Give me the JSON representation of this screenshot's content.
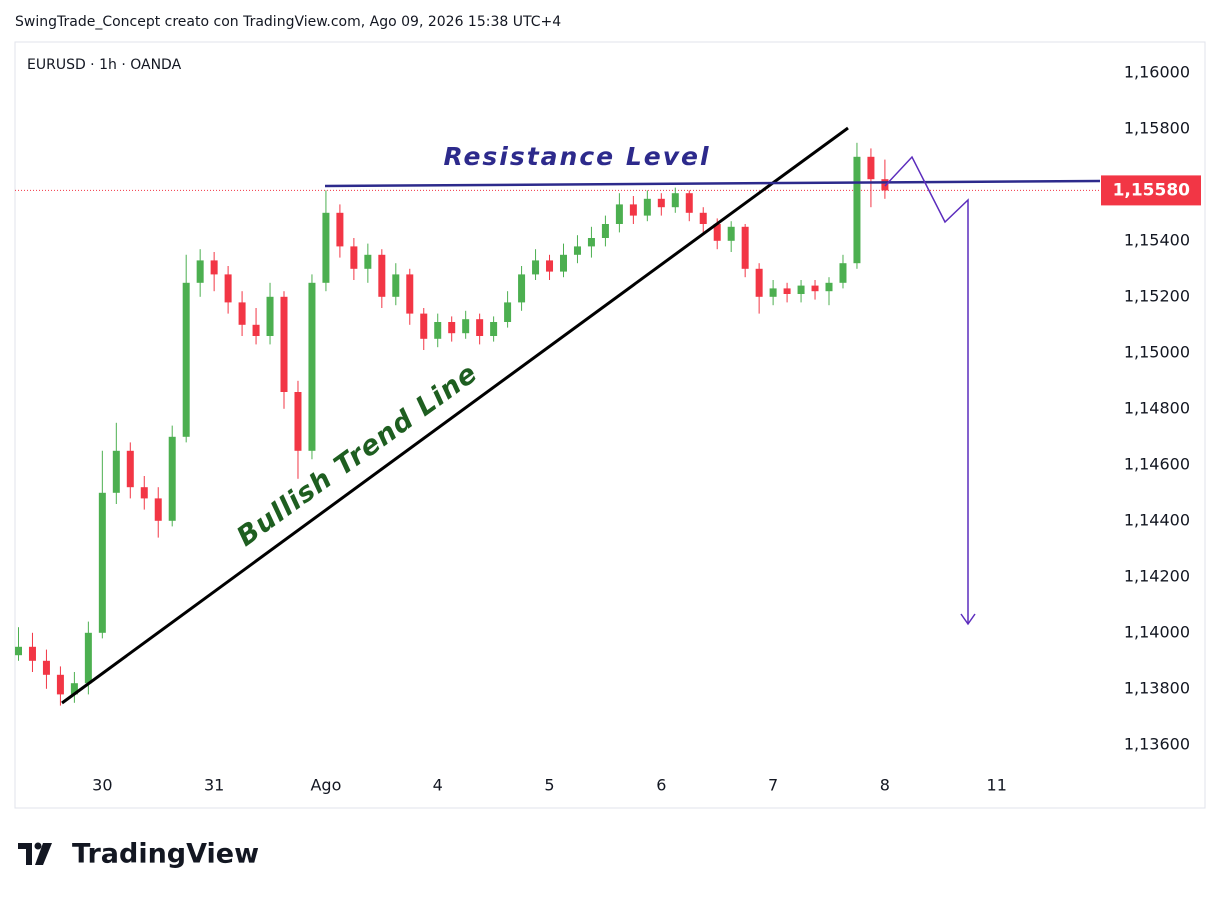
{
  "chart_data": {
    "type": "candlestick",
    "header": "SwingTrade_Concept creato con TradingView.com, Ago 09, 2026 15:38 UTC+4",
    "title": "EURUSD · 1h · OANDA",
    "annotations": [
      "Resistance Level",
      "Bullish Trend Line"
    ],
    "brand": "TradingView",
    "up_color": "#4caf50",
    "down_color": "#f23645",
    "open": [
      1.1392,
      1.1395,
      1.139,
      1.1385,
      1.1378,
      1.1382,
      1.14,
      1.145,
      1.1465,
      1.1452,
      1.1448,
      1.144,
      1.147,
      1.1525,
      1.1533,
      1.1528,
      1.1518,
      1.151,
      1.1506,
      1.152,
      1.1486,
      1.1465,
      1.1525,
      1.155,
      1.1538,
      1.153,
      1.1535,
      1.152,
      1.1528,
      1.1514,
      1.1505,
      1.1511,
      1.1507,
      1.1512,
      1.1506,
      1.1511,
      1.1518,
      1.1528,
      1.1533,
      1.1529,
      1.1535,
      1.1538,
      1.1541,
      1.1546,
      1.1553,
      1.1549,
      1.1555,
      1.1552,
      1.1557,
      1.155,
      1.1546,
      1.154,
      1.1545,
      1.153,
      1.152,
      1.1523,
      1.1521,
      1.1524,
      1.1522,
      1.1525,
      1.1532,
      1.157,
      1.1562
    ],
    "high": [
      1.1402,
      1.14,
      1.1394,
      1.1388,
      1.1386,
      1.1404,
      1.1465,
      1.1475,
      1.1468,
      1.1456,
      1.1452,
      1.1474,
      1.1535,
      1.1537,
      1.1536,
      1.1531,
      1.1522,
      1.1516,
      1.1525,
      1.1522,
      1.149,
      1.1528,
      1.1558,
      1.1553,
      1.1541,
      1.1539,
      1.1537,
      1.1532,
      1.153,
      1.1516,
      1.1514,
      1.1513,
      1.1515,
      1.1514,
      1.1513,
      1.1522,
      1.1531,
      1.1537,
      1.1535,
      1.1539,
      1.1542,
      1.1545,
      1.1549,
      1.1557,
      1.1556,
      1.1558,
      1.1557,
      1.1559,
      1.1558,
      1.1552,
      1.1548,
      1.1547,
      1.1546,
      1.1532,
      1.1526,
      1.1525,
      1.1526,
      1.1526,
      1.1527,
      1.1535,
      1.1575,
      1.1573,
      1.1569
    ],
    "low": [
      1.139,
      1.1386,
      1.138,
      1.1374,
      1.1375,
      1.1378,
      1.1398,
      1.1446,
      1.1448,
      1.1444,
      1.1434,
      1.1438,
      1.1468,
      1.152,
      1.1522,
      1.1514,
      1.1506,
      1.1503,
      1.1503,
      1.148,
      1.1455,
      1.1462,
      1.1522,
      1.1534,
      1.1526,
      1.1525,
      1.1516,
      1.1517,
      1.151,
      1.1501,
      1.1502,
      1.1504,
      1.1505,
      1.1503,
      1.1504,
      1.1509,
      1.1515,
      1.1526,
      1.1526,
      1.1527,
      1.1532,
      1.1534,
      1.1538,
      1.1543,
      1.1546,
      1.1547,
      1.1549,
      1.155,
      1.1547,
      1.1543,
      1.1537,
      1.1536,
      1.1527,
      1.1514,
      1.1517,
      1.1518,
      1.1518,
      1.1519,
      1.1517,
      1.1523,
      1.153,
      1.1552,
      1.1555
    ],
    "close": [
      1.1395,
      1.139,
      1.1385,
      1.1378,
      1.1382,
      1.14,
      1.145,
      1.1465,
      1.1452,
      1.1448,
      1.144,
      1.147,
      1.1525,
      1.1533,
      1.1528,
      1.1518,
      1.151,
      1.1506,
      1.152,
      1.1486,
      1.1465,
      1.1525,
      1.155,
      1.1538,
      1.153,
      1.1535,
      1.152,
      1.1528,
      1.1514,
      1.1505,
      1.1511,
      1.1507,
      1.1512,
      1.1506,
      1.1511,
      1.1518,
      1.1528,
      1.1533,
      1.1529,
      1.1535,
      1.1538,
      1.1541,
      1.1546,
      1.1553,
      1.1549,
      1.1555,
      1.1552,
      1.1557,
      1.155,
      1.1546,
      1.154,
      1.1545,
      1.153,
      1.152,
      1.1523,
      1.1521,
      1.1524,
      1.1522,
      1.1525,
      1.1532,
      1.157,
      1.1562,
      1.1558
    ],
    "xlim": [
      -0.25,
      77.75
    ],
    "xticks": [
      {
        "value": 6,
        "label": "30"
      },
      {
        "value": 14,
        "label": "31"
      },
      {
        "value": 22,
        "label": "Ago"
      },
      {
        "value": 30,
        "label": "4"
      },
      {
        "value": 38,
        "label": "5"
      },
      {
        "value": 46,
        "label": "6"
      },
      {
        "value": 54,
        "label": "7"
      },
      {
        "value": 62,
        "label": "8"
      },
      {
        "value": 70,
        "label": "11"
      }
    ],
    "ylim": [
      1.1351,
      1.1611
    ],
    "yticks": [
      {
        "value": 1.16,
        "label": "1,16000"
      },
      {
        "value": 1.158,
        "label": "1,15800"
      },
      {
        "value": 1.156,
        "label": "1,15600"
      },
      {
        "value": 1.154,
        "label": "1,15400"
      },
      {
        "value": 1.152,
        "label": "1,15200"
      },
      {
        "value": 1.15,
        "label": "1,15000"
      },
      {
        "value": 1.148,
        "label": "1,14800"
      },
      {
        "value": 1.146,
        "label": "1,14600"
      },
      {
        "value": 1.144,
        "label": "1,14400"
      },
      {
        "value": 1.142,
        "label": "1,14200"
      },
      {
        "value": 1.14,
        "label": "1,14000"
      },
      {
        "value": 1.138,
        "label": "1,13800"
      },
      {
        "value": 1.136,
        "label": "1,13600"
      }
    ],
    "last_price": {
      "value": 1.1558,
      "label": "1,15580"
    }
  }
}
